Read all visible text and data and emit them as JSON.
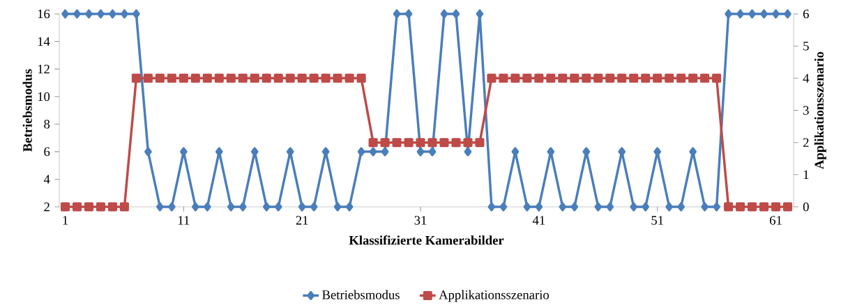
{
  "chart_data": {
    "type": "line",
    "xlabel": "Klassifizierte Kamerabilder",
    "ylabel": "Betriebsmodus",
    "y2label": "Applikationsszenario",
    "x": [
      1,
      2,
      3,
      4,
      5,
      6,
      7,
      8,
      9,
      10,
      11,
      12,
      13,
      14,
      15,
      16,
      17,
      18,
      19,
      20,
      21,
      22,
      23,
      24,
      25,
      26,
      27,
      28,
      29,
      30,
      31,
      32,
      33,
      34,
      35,
      36,
      37,
      38,
      39,
      40,
      41,
      42,
      43,
      44,
      45,
      46,
      47,
      48,
      49,
      50,
      51,
      52,
      53,
      54,
      55,
      56,
      57,
      58,
      59,
      60,
      61,
      62
    ],
    "series": [
      {
        "name": "Betriebsmodus",
        "color": "#4a7ebb",
        "marker": "diamond",
        "line_style": "solid",
        "values": [
          16,
          16,
          16,
          16,
          16,
          16,
          16,
          6,
          2,
          2,
          6,
          2,
          2,
          6,
          2,
          2,
          6,
          2,
          2,
          6,
          2,
          2,
          6,
          2,
          2,
          6,
          6,
          6,
          16,
          16,
          6,
          6,
          16,
          16,
          6,
          16,
          2,
          2,
          6,
          2,
          2,
          6,
          2,
          2,
          6,
          2,
          2,
          6,
          2,
          2,
          6,
          2,
          2,
          6,
          2,
          2,
          16,
          16,
          16,
          16,
          16,
          16
        ]
      },
      {
        "name": "Applikationsszenario",
        "color": "#be4b48",
        "marker": "square",
        "line_style": "solid",
        "axis": "y2",
        "values": [
          0,
          0,
          0,
          0,
          0,
          0,
          4,
          4,
          4,
          4,
          4,
          4,
          4,
          4,
          4,
          4,
          4,
          4,
          4,
          4,
          4,
          4,
          4,
          4,
          4,
          4,
          2,
          2,
          2,
          2,
          2,
          2,
          2,
          2,
          2,
          2,
          4,
          4,
          4,
          4,
          4,
          4,
          4,
          4,
          4,
          4,
          4,
          4,
          4,
          4,
          4,
          4,
          4,
          4,
          4,
          4,
          0,
          0,
          0,
          0,
          0,
          0
        ]
      }
    ],
    "xlim": [
      0.5,
      62.5
    ],
    "xticks": [
      1,
      11,
      21,
      31,
      41,
      51,
      61
    ],
    "ylim": [
      2,
      16
    ],
    "yticks": [
      2,
      4,
      6,
      8,
      10,
      12,
      14,
      16
    ],
    "y2lim": [
      0,
      6
    ],
    "y2ticks": [
      0,
      1,
      2,
      3,
      4,
      5,
      6
    ],
    "grid": false,
    "legend": "bottom"
  }
}
